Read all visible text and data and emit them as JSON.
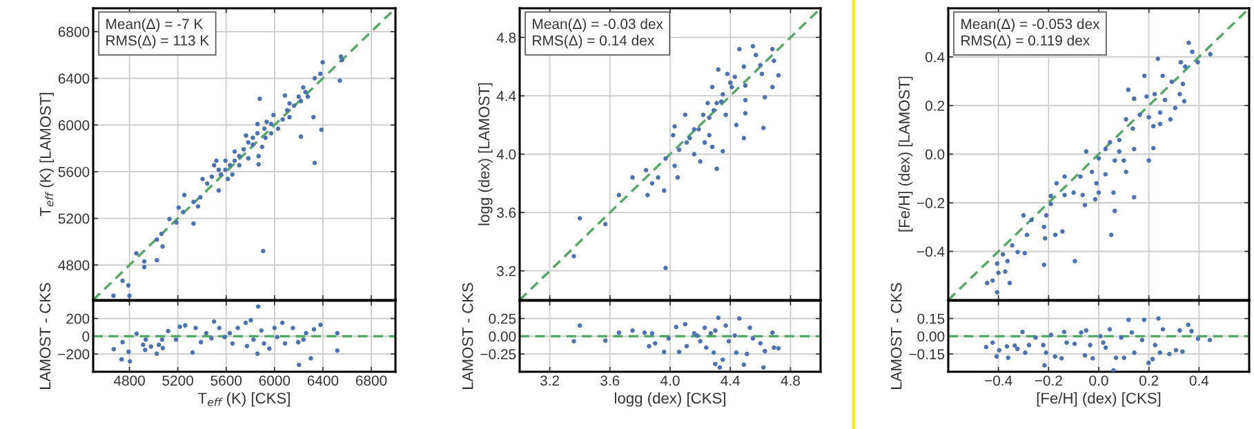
{
  "chart_data": [
    {
      "type": "scatter",
      "ylabel": "T$_{eff}$ (K) [LAMOST]",
      "annotations": [
        "Mean(Δ) = -7 K",
        "RMS(Δ) = 113 K"
      ],
      "xlim": [
        4500,
        7000
      ],
      "ylim": [
        4500,
        7000
      ],
      "xticks": [
        4800,
        5200,
        5600,
        6000,
        6400,
        6800
      ],
      "yticks": [
        4800,
        5200,
        5600,
        6000,
        6400,
        6800
      ],
      "tick_labels": "y",
      "grid": true,
      "marker": "circle",
      "series": [
        {
          "color": "#4c72b0",
          "x": [
            6549,
            6558,
            6540,
            6398,
            6379,
            6332,
            5878,
            6086,
            6237,
            6275,
            6322,
            6388,
            6218,
            6332,
            6162,
            6105,
            6067,
            5972,
            5916,
            5859,
            5821,
            5783,
            5745,
            5708,
            5670,
            5632,
            5594,
            5556,
            5519,
            5500,
            5613,
            5538,
            5443,
            5405,
            5386,
            5367,
            5254,
            5207,
            5244,
            5131,
            5188,
            5330,
            5065,
            5027,
            5074,
            4857,
            4923,
            4923,
            5027,
            4743,
            4791,
            4668,
            4800,
            5906,
            5670,
            5764,
            5859,
            5935,
            5972,
            5897,
            5868,
            5868,
            5783,
            5708,
            5651,
            5991,
            6124,
            6200,
            6256,
            6218,
            6124,
            6029,
            5925,
            5821,
            5594,
            5538,
            5481,
            5330
          ],
          "values": [
            6586,
            6557,
            6380,
            6537,
            6439,
            6400,
            6224,
            6253,
            6322,
            6243,
            6067,
            5959,
            5900,
            5675,
            6165,
            6125,
            6047,
            6008,
            5969,
            5929,
            5890,
            5851,
            5792,
            5733,
            5694,
            5655,
            5616,
            5576,
            5694,
            5655,
            5537,
            5439,
            5498,
            5537,
            5380,
            5302,
            5400,
            5292,
            5253,
            5194,
            5165,
            5155,
            5067,
            5018,
            4959,
            4900,
            4831,
            4782,
            4841,
            4665,
            4625,
            4537,
            4537,
            4920,
            5772,
            5910,
            6008,
            6027,
            5929,
            5812,
            5733,
            5663,
            5714,
            5655,
            5576,
            6086,
            6184,
            6243,
            6282,
            6204,
            6067,
            5969,
            5890,
            5831,
            5694,
            5616,
            5557,
            5341
          ]
        },
        {
          "type": "line",
          "marker": "none",
          "color": "#55a868",
          "line_style": "dashed",
          "x": [
            4500,
            7000
          ],
          "values": [
            4500,
            7000
          ]
        }
      ]
    },
    {
      "type": "scatter",
      "ylabel": "logg (dex) [LAMOST]",
      "annotations": [
        "Mean(Δ) = -0.03 dex",
        "RMS(Δ) = 0.14 dex"
      ],
      "xlim": [
        3.0,
        5.0
      ],
      "ylim": [
        3.0,
        5.0
      ],
      "xticks": [
        3.2,
        3.6,
        4.0,
        4.4,
        4.8
      ],
      "yticks": [
        3.2,
        3.6,
        {
          "value": 4.0,
          "label": "4.0"
        },
        4.4,
        4.8
      ],
      "tick_labels": "y",
      "grid": true,
      "marker": "circle",
      "series": [
        {
          "color": "#4c72b0",
          "x": [
            3.36,
            3.4,
            3.57,
            3.66,
            3.75,
            3.85,
            3.88,
            3.96,
            3.84,
            3.92,
            3.97,
            3.97,
            4.03,
            4.05,
            4.03,
            4.1,
            4.11,
            4.16,
            4.19,
            4.23,
            4.28,
            4.31,
            4.35,
            4.28,
            4.32,
            4.25,
            4.29,
            4.34,
            4.37,
            4.41,
            4.46,
            4.55,
            4.49,
            4.57,
            4.61,
            4.68,
            4.69,
            4.72,
            4.68,
            4.63,
            4.62,
            4.49,
            4.44,
            4.5,
            4.5,
            4.43,
            4.38,
            4.16,
            4.13,
            4.22,
            4.26,
            4.31,
            4.35,
            4.4,
            4.5,
            4.6,
            4.02,
            4.06,
            4.26,
            4.2
          ],
          "values": [
            3.3,
            3.56,
            3.52,
            3.72,
            3.84,
            3.72,
            3.8,
            3.75,
            3.89,
            3.84,
            3.22,
            3.97,
            3.92,
            3.84,
            4.19,
            4.27,
            4.08,
            4.0,
            4.17,
            4.08,
            4.05,
            3.9,
            4.02,
            4.46,
            4.58,
            4.35,
            4.3,
            4.36,
            4.27,
            4.46,
            4.72,
            4.74,
            4.6,
            4.68,
            4.55,
            4.72,
            4.64,
            4.54,
            4.46,
            4.39,
            4.18,
            4.11,
            4.2,
            4.28,
            4.37,
            4.53,
            4.55,
            4.17,
            4.11,
            4.27,
            4.25,
            4.35,
            4.41,
            4.49,
            4.47,
            4.61,
            4.13,
            4.03,
            4.13,
            3.95
          ]
        },
        {
          "type": "line",
          "marker": "none",
          "color": "#55a868",
          "line_style": "dashed",
          "x": [
            3.0,
            5.0
          ],
          "values": [
            3.0,
            5.0
          ]
        }
      ]
    },
    {
      "type": "scatter",
      "ylabel": "[Fe/H] (dex) [LAMOST]",
      "annotations": [
        "Mean(Δ) = -0.053 dex",
        "RMS(Δ) = 0.119 dex"
      ],
      "xlim": [
        -0.6,
        0.6
      ],
      "ylim": [
        -0.6,
        0.6
      ],
      "xticks": [
        -0.4,
        -0.2,
        0.0,
        0.2,
        0.4
      ],
      "yticks": [
        {
          "value": -0.4,
          "label": "−0.4"
        },
        {
          "value": -0.2,
          "label": "−0.2"
        },
        {
          "value": 0.0,
          "label": "0.0"
        },
        {
          "value": 0.2,
          "label": "0.2"
        },
        {
          "value": 0.4,
          "label": "0.4"
        }
      ],
      "tick_labels": "y",
      "grid": true,
      "marker": "circle",
      "series": [
        {
          "color": "#4c72b0",
          "x": [
            -0.405,
            -0.445,
            -0.423,
            -0.4,
            -0.373,
            -0.405,
            -0.364,
            -0.355,
            -0.382,
            -0.345,
            -0.323,
            -0.295,
            -0.3,
            -0.268,
            -0.286,
            -0.218,
            -0.218,
            -0.209,
            -0.191,
            -0.214,
            -0.173,
            -0.145,
            -0.095,
            -0.168,
            -0.136,
            -0.191,
            -0.136,
            -0.1,
            -0.055,
            -0.064,
            -0.073,
            -0.05,
            -0.027,
            -0.009,
            0.0,
            -0.014,
            0.027,
            0.0,
            0.027,
            0.045,
            0.064,
            0.059,
            0.05,
            0.064,
            0.082,
            0.1,
            0.109,
            0.082,
            0.109,
            0.136,
            0.141,
            0.141,
            0.118,
            0.141,
            0.182,
            0.164,
            0.191,
            0.2,
            0.2,
            0.218,
            0.218,
            0.245,
            0.245,
            0.236,
            0.255,
            0.264,
            0.286,
            0.305,
            0.323,
            0.341,
            0.336,
            0.291,
            0.327,
            0.345,
            0.359,
            0.373,
            0.395,
            0.445,
            0.223
          ],
          "values": [
            -0.568,
            -0.53,
            -0.52,
            -0.488,
            -0.483,
            -0.45,
            -0.44,
            -0.53,
            -0.412,
            -0.375,
            -0.403,
            -0.407,
            -0.252,
            -0.271,
            -0.332,
            -0.455,
            -0.299,
            -0.252,
            -0.205,
            -0.346,
            -0.332,
            -0.318,
            -0.44,
            -0.12,
            -0.092,
            -0.172,
            -0.168,
            -0.158,
            -0.21,
            -0.168,
            -0.092,
            0.011,
            -0.073,
            -0.12,
            -0.158,
            -0.186,
            -0.083,
            -0.017,
            0.021,
            0.049,
            -0.233,
            -0.158,
            -0.332,
            -0.026,
            0.011,
            -0.026,
            -0.073,
            0.058,
            0.143,
            0.105,
            0.021,
            -0.177,
            0.265,
            0.228,
            0.322,
            0.162,
            0.237,
            0.152,
            -0.026,
            0.025,
            0.115,
            0.124,
            0.171,
            0.392,
            0.322,
            0.223,
            0.143,
            0.19,
            0.247,
            0.218,
            0.289,
            0.298,
            0.378,
            0.36,
            0.458,
            0.421,
            0.378,
            0.411,
            0.247
          ]
        },
        {
          "type": "line",
          "marker": "none",
          "color": "#55a868",
          "line_style": "dashed",
          "x": [
            -0.6,
            0.6
          ],
          "values": [
            -0.6,
            0.6
          ]
        }
      ]
    },
    {
      "type": "scatter",
      "xlabel": "T$_{eff}$ (K) [CKS]",
      "ylabel": "LAMOST - CKS",
      "xlim": [
        4500,
        7000
      ],
      "ylim": [
        -400,
        400
      ],
      "xticks": [
        4800,
        5200,
        5600,
        6000,
        6400,
        6800
      ],
      "yticks": [
        {
          "value": -200,
          "label": "−200"
        },
        0,
        200
      ],
      "grid": true,
      "marker": "circle",
      "ref_lines": [
        {
          "axis": "y",
          "value": 0,
          "color": "#55a868",
          "line_style": "dashed"
        }
      ],
      "series": [
        {
          "color": "#4c72b0",
          "x": [
            4670,
            4735,
            4743,
            4793,
            4804,
            4859,
            4913,
            4935,
            4930,
            4978,
            5026,
            5043,
            5076,
            5070,
            5120,
            5185,
            5217,
            5261,
            5322,
            5348,
            5391,
            5435,
            5500,
            5543,
            5587,
            5630,
            5652,
            5696,
            5761,
            5804,
            5772,
            5865,
            5859,
            5891,
            5913,
            5957,
            6000,
            6065,
            6087,
            6152,
            6196,
            6202,
            6261,
            6300,
            6326,
            6380,
            6519,
            6519,
            6022,
            5826,
            5478,
            6239
          ],
          "values": [
            -145,
            -261,
            -67,
            -174,
            -284,
            29,
            -96,
            -38,
            -154,
            -116,
            -197,
            -96,
            -133,
            -38,
            58,
            -38,
            107,
            122,
            -183,
            93,
            -67,
            35,
            165,
            93,
            -9,
            35,
            -81,
            93,
            151,
            180,
            -110,
            334,
            -197,
            64,
            -81,
            -139,
            93,
            151,
            -81,
            93,
            -67,
            -322,
            35,
            -249,
            78,
            128,
            35,
            -162,
            -9,
            -38,
            -23,
            -38
          ]
        }
      ]
    },
    {
      "type": "scatter",
      "xlabel": "logg (dex) [CKS]",
      "ylabel": "LAMOST - CKS",
      "xlim": [
        3.0,
        5.0
      ],
      "ylim": [
        -0.5,
        0.5
      ],
      "xticks": [
        3.2,
        3.6,
        {
          "value": 4.0,
          "label": "4.0"
        },
        4.4,
        4.8
      ],
      "yticks": [
        {
          "value": -0.25,
          "label": "−0.25"
        },
        {
          "value": 0.0,
          "label": "0.00"
        },
        0.25
      ],
      "grid": true,
      "marker": "circle",
      "ref_lines": [
        {
          "axis": "y",
          "value": 0,
          "color": "#55a868",
          "line_style": "dashed"
        }
      ],
      "series": [
        {
          "color": "#4c72b0",
          "x": [
            3.36,
            3.4,
            3.57,
            3.66,
            3.75,
            3.83,
            3.88,
            3.86,
            3.9,
            3.96,
            3.99,
            4.04,
            4.06,
            4.1,
            4.11,
            4.16,
            4.2,
            4.23,
            4.24,
            4.29,
            4.3,
            4.32,
            4.3,
            4.33,
            4.35,
            4.37,
            4.39,
            4.44,
            4.46,
            4.49,
            4.51,
            4.53,
            4.55,
            4.6,
            4.62,
            4.63,
            4.68,
            4.69,
            4.72,
            4.18,
            4.43,
            4.27
          ],
          "values": [
            -0.07,
            0.15,
            -0.06,
            0.05,
            0.08,
            0.05,
            0.04,
            -0.14,
            -0.1,
            -0.22,
            -0.03,
            0.13,
            -0.22,
            0.17,
            -0.14,
            0.04,
            -0.07,
            0.12,
            -0.16,
            -0.23,
            0.08,
            0.26,
            -0.39,
            -0.44,
            -0.33,
            0.15,
            -0.07,
            -0.23,
            0.25,
            -0.4,
            -0.25,
            0.12,
            -0.03,
            -0.1,
            -0.44,
            -0.21,
            0.05,
            -0.16,
            -0.17,
            0.01,
            0.01,
            0.04
          ]
        }
      ]
    },
    {
      "type": "scatter",
      "xlabel": "[Fe/H] (dex) [CKS]",
      "ylabel": "LAMOST - CKS",
      "xlim": [
        -0.6,
        0.6
      ],
      "ylim": [
        -0.3,
        0.3
      ],
      "xticks": [
        {
          "value": -0.4,
          "label": "−0.4"
        },
        {
          "value": -0.2,
          "label": "−0.2"
        },
        {
          "value": 0.0,
          "label": "0.0"
        },
        0.2,
        0.4
      ],
      "yticks": [
        {
          "value": -0.15,
          "label": "−0.15"
        },
        {
          "value": 0.0,
          "label": "0.00"
        },
        0.15
      ],
      "grid": true,
      "marker": "circle",
      "ref_lines": [
        {
          "axis": "y",
          "value": 0,
          "color": "#55a868",
          "line_style": "dashed"
        }
      ],
      "series": [
        {
          "color": "#4c72b0",
          "x": [
            -0.449,
            -0.423,
            -0.407,
            -0.397,
            -0.361,
            -0.366,
            -0.335,
            -0.304,
            -0.324,
            -0.293,
            -0.278,
            -0.252,
            -0.221,
            -0.216,
            -0.21,
            -0.19,
            -0.174,
            -0.148,
            -0.138,
            -0.128,
            -0.096,
            -0.07,
            -0.05,
            -0.055,
            -0.024,
            0.007,
            0.018,
            0.044,
            0.059,
            0.069,
            0.101,
            0.09,
            0.119,
            0.132,
            0.142,
            0.173,
            0.181,
            0.199,
            0.215,
            0.225,
            0.238,
            0.256,
            0.244,
            0.282,
            0.308,
            0.323,
            0.334,
            0.357,
            0.37,
            0.396,
            0.443,
            -0.034,
            0.028
          ],
          "values": [
            -0.092,
            -0.054,
            -0.171,
            -0.118,
            -0.182,
            -0.086,
            -0.079,
            0.036,
            -0.107,
            -0.139,
            -0.075,
            -0.011,
            -0.075,
            -0.246,
            -0.139,
            0.011,
            -0.171,
            -0.186,
            0.036,
            -0.054,
            -0.064,
            0.032,
            0.049,
            -0.161,
            -0.186,
            0.0,
            -0.054,
            0.058,
            -0.289,
            -0.182,
            -0.182,
            -0.011,
            0.139,
            0.032,
            -0.139,
            -0.032,
            0.139,
            -0.225,
            -0.193,
            -0.075,
            0.15,
            0.058,
            -0.139,
            -0.15,
            -0.118,
            0.049,
            -0.129,
            0.096,
            0.043,
            -0.021,
            -0.032,
            -0.075,
            -0.096
          ]
        }
      ]
    }
  ]
}
